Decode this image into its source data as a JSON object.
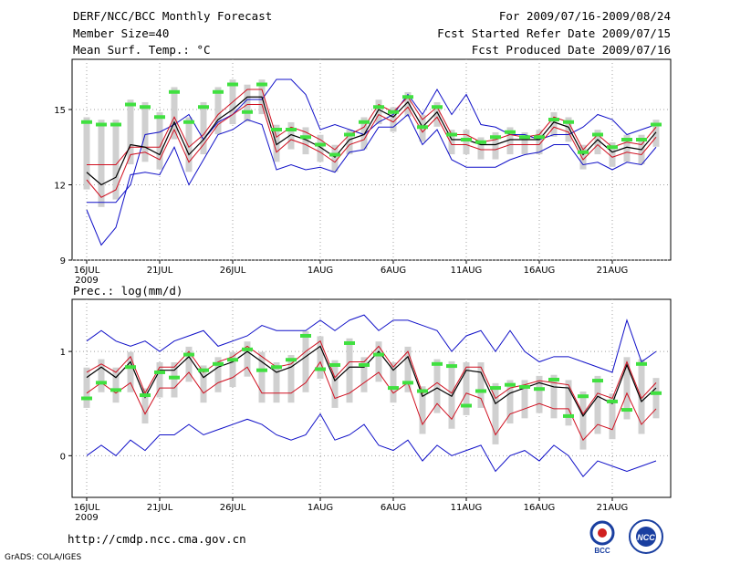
{
  "header": {
    "title": "DERF/NCC/BCC Monthly Forecast",
    "member_size": "Member Size=40",
    "variable_label": "Mean Surf. Temp.: °C",
    "period": "For 2009/07/16-2009/08/24",
    "started": "Fcst Started Refer Date 2009/07/15",
    "produced": "Fcst Produced Date 2009/07/16"
  },
  "footer": {
    "url": "http://cmdp.ncc.cma.gov.cn",
    "credit": "GrADS: COLA/IGES",
    "logo1": "BCC",
    "logo2": "NCC"
  },
  "colors": {
    "upper_bound": "#1010c8",
    "lower_bound": "#1010c8",
    "mean": "#000000",
    "spread": "#d01020",
    "observed": "#40e040",
    "boxes": "#d0d0d0",
    "grid": "#a0a0a0"
  },
  "chart_data": [
    {
      "type": "line",
      "title": "Mean Surf. Temp.: °C",
      "x_tick_labels": [
        "16JUL",
        "21JUL",
        "26JUL",
        "1AUG",
        "6AUG",
        "11AUG",
        "16AUG",
        "21AUG"
      ],
      "x_tick_days": [
        1,
        6,
        11,
        17,
        22,
        27,
        32,
        37
      ],
      "year_label": "2009",
      "ylim": [
        9,
        17
      ],
      "yticks": [
        9,
        12,
        15
      ],
      "days": 40,
      "series": [
        {
          "name": "max",
          "values": [
            11.3,
            11.3,
            11.3,
            12.0,
            14.0,
            14.1,
            14.4,
            14.8,
            13.8,
            14.5,
            14.8,
            15.4,
            15.4,
            16.2,
            16.2,
            15.6,
            14.2,
            14.4,
            14.2,
            14.0,
            14.5,
            14.8,
            15.6,
            14.8,
            15.8,
            14.8,
            15.6,
            14.4,
            14.3,
            14.0,
            14.0,
            13.8,
            14.0,
            14.0,
            14.3,
            14.8,
            14.6,
            14.0,
            14.2,
            14.4
          ]
        },
        {
          "name": "upper",
          "values": [
            12.8,
            12.8,
            12.8,
            13.5,
            13.5,
            13.5,
            14.7,
            13.5,
            14.0,
            14.8,
            15.3,
            15.8,
            15.8,
            13.9,
            14.3,
            14.1,
            13.8,
            13.4,
            14.0,
            14.3,
            15.2,
            14.9,
            15.5,
            14.6,
            15.1,
            14.0,
            14.0,
            13.7,
            13.8,
            14.0,
            13.9,
            14.0,
            14.7,
            14.5,
            13.4,
            14.0,
            13.5,
            13.7,
            13.6,
            14.3
          ]
        },
        {
          "name": "mean",
          "values": [
            12.5,
            12.0,
            12.3,
            13.6,
            13.5,
            13.2,
            14.5,
            13.2,
            13.8,
            14.6,
            15.0,
            15.5,
            15.5,
            13.6,
            14.0,
            13.8,
            13.5,
            13.1,
            13.8,
            14.0,
            15.0,
            14.7,
            15.3,
            14.3,
            14.9,
            13.8,
            13.8,
            13.6,
            13.6,
            13.8,
            13.8,
            13.8,
            14.5,
            14.3,
            13.2,
            13.8,
            13.3,
            13.5,
            13.4,
            14.1
          ]
        },
        {
          "name": "lower",
          "values": [
            12.2,
            11.5,
            11.8,
            13.2,
            13.3,
            13.0,
            14.2,
            12.9,
            13.6,
            14.4,
            14.8,
            15.2,
            15.2,
            13.3,
            13.8,
            13.6,
            13.3,
            12.9,
            13.6,
            13.8,
            14.8,
            14.5,
            15.1,
            14.1,
            14.7,
            13.6,
            13.6,
            13.4,
            13.4,
            13.6,
            13.6,
            13.6,
            14.3,
            14.1,
            13.0,
            13.6,
            13.1,
            13.3,
            13.2,
            13.9
          ]
        },
        {
          "name": "min",
          "values": [
            11.0,
            9.6,
            10.3,
            12.4,
            12.5,
            12.4,
            13.5,
            12.0,
            13.0,
            14.0,
            14.2,
            14.6,
            14.4,
            12.6,
            12.8,
            12.6,
            12.7,
            12.5,
            13.3,
            13.4,
            14.3,
            14.3,
            14.8,
            13.6,
            14.2,
            13.0,
            12.7,
            12.7,
            12.7,
            13.0,
            13.2,
            13.3,
            13.6,
            13.6,
            12.8,
            12.9,
            12.6,
            12.9,
            12.8,
            13.5
          ]
        },
        {
          "name": "observed",
          "values": [
            14.5,
            14.4,
            14.4,
            15.2,
            15.1,
            14.7,
            15.7,
            14.5,
            15.1,
            15.7,
            16.0,
            14.9,
            16.0,
            14.2,
            14.2,
            13.9,
            13.6,
            13.2,
            14.0,
            14.5,
            15.1,
            14.9,
            15.5,
            14.3,
            15.1,
            14.0,
            13.8,
            13.7,
            13.9,
            14.1,
            13.9,
            13.9,
            14.6,
            14.5,
            13.3,
            14.0,
            13.5,
            13.8,
            13.8,
            14.4
          ]
        }
      ]
    },
    {
      "type": "line",
      "title": "Prec.: log(mm/d)",
      "x_tick_labels": [
        "16JUL",
        "21JUL",
        "26JUL",
        "1AUG",
        "6AUG",
        "11AUG",
        "16AUG",
        "21AUG"
      ],
      "x_tick_days": [
        1,
        6,
        11,
        17,
        22,
        27,
        32,
        37
      ],
      "year_label": "2009",
      "ylim": [
        -0.4,
        1.5
      ],
      "yticks": [
        0,
        1
      ],
      "days": 40,
      "series": [
        {
          "name": "max",
          "values": [
            1.1,
            1.2,
            1.1,
            1.05,
            1.1,
            1.0,
            1.1,
            1.15,
            1.2,
            1.05,
            1.1,
            1.15,
            1.25,
            1.2,
            1.2,
            1.2,
            1.3,
            1.2,
            1.3,
            1.35,
            1.2,
            1.3,
            1.3,
            1.25,
            1.2,
            1.0,
            1.15,
            1.2,
            1.0,
            1.2,
            1.0,
            0.9,
            0.95,
            0.95,
            0.9,
            0.85,
            0.8,
            1.3,
            0.9,
            1.0
          ]
        },
        {
          "name": "upper",
          "values": [
            0.8,
            0.88,
            0.8,
            0.95,
            0.6,
            0.85,
            0.85,
            1.0,
            0.8,
            0.9,
            0.95,
            1.05,
            0.95,
            0.85,
            0.88,
            1.0,
            1.1,
            0.75,
            0.9,
            0.9,
            1.05,
            0.85,
            1.0,
            0.6,
            0.7,
            0.6,
            0.85,
            0.85,
            0.55,
            0.65,
            0.68,
            0.72,
            0.7,
            0.68,
            0.4,
            0.6,
            0.55,
            0.9,
            0.55,
            0.7
          ]
        },
        {
          "name": "mean",
          "values": [
            0.75,
            0.85,
            0.75,
            0.9,
            0.56,
            0.82,
            0.82,
            0.95,
            0.75,
            0.85,
            0.9,
            1.0,
            0.9,
            0.8,
            0.85,
            0.95,
            1.05,
            0.72,
            0.85,
            0.85,
            1.0,
            0.82,
            0.95,
            0.57,
            0.65,
            0.57,
            0.82,
            0.8,
            0.5,
            0.6,
            0.65,
            0.7,
            0.66,
            0.65,
            0.38,
            0.57,
            0.5,
            0.87,
            0.52,
            0.65
          ]
        },
        {
          "name": "lower",
          "values": [
            0.6,
            0.7,
            0.6,
            0.7,
            0.4,
            0.65,
            0.65,
            0.8,
            0.6,
            0.7,
            0.75,
            0.85,
            0.6,
            0.6,
            0.6,
            0.7,
            0.9,
            0.55,
            0.6,
            0.7,
            0.8,
            0.6,
            0.7,
            0.3,
            0.5,
            0.35,
            0.6,
            0.55,
            0.2,
            0.4,
            0.45,
            0.5,
            0.45,
            0.45,
            0.15,
            0.3,
            0.25,
            0.6,
            0.3,
            0.45
          ]
        },
        {
          "name": "min",
          "values": [
            0.0,
            0.1,
            0.0,
            0.15,
            0.05,
            0.2,
            0.2,
            0.3,
            0.2,
            0.25,
            0.3,
            0.35,
            0.3,
            0.2,
            0.15,
            0.2,
            0.4,
            0.15,
            0.2,
            0.3,
            0.1,
            0.05,
            0.15,
            -0.05,
            0.1,
            0.0,
            0.05,
            0.1,
            -0.15,
            0.0,
            0.05,
            -0.05,
            0.1,
            0.0,
            -0.2,
            -0.05,
            -0.1,
            -0.15,
            -0.1,
            -0.05
          ]
        },
        {
          "name": "observed",
          "values": [
            0.55,
            0.7,
            0.63,
            0.85,
            0.58,
            0.8,
            0.75,
            0.97,
            0.82,
            0.88,
            0.92,
            1.02,
            0.82,
            0.85,
            0.92,
            1.15,
            0.83,
            0.87,
            1.08,
            0.87,
            0.97,
            0.65,
            0.7,
            0.62,
            0.88,
            0.86,
            0.48,
            0.62,
            0.65,
            0.68,
            0.66,
            0.64,
            0.73,
            0.38,
            0.57,
            0.72,
            0.52,
            0.44,
            0.88,
            0.6
          ]
        }
      ]
    }
  ]
}
